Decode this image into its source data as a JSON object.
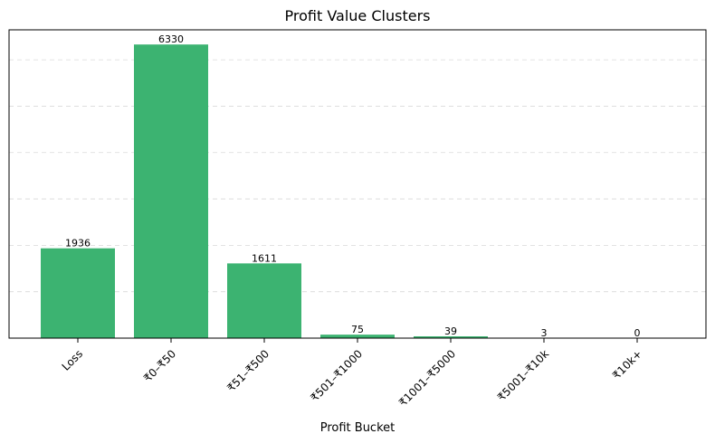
{
  "chart_data": {
    "type": "bar",
    "title": "Profit Value Clusters",
    "xlabel": "Profit Bucket",
    "ylabel": "",
    "categories": [
      "Loss",
      "₹0–₹50",
      "₹51–₹500",
      "₹501–₹1000",
      "₹1001–₹5000",
      "₹5001–₹10k",
      "₹10k+"
    ],
    "values": [
      1936,
      6330,
      1611,
      75,
      39,
      3,
      0
    ],
    "data_labels": [
      "1936",
      "6330",
      "1611",
      "75",
      "39",
      "3",
      "0"
    ],
    "ylim": [
      0,
      6646
    ],
    "y_gridlines": [
      1000,
      2000,
      3000,
      4000,
      5000,
      6000
    ],
    "y_tick_labels_visible": false,
    "grid": true,
    "bar_color": "#3cb371"
  }
}
